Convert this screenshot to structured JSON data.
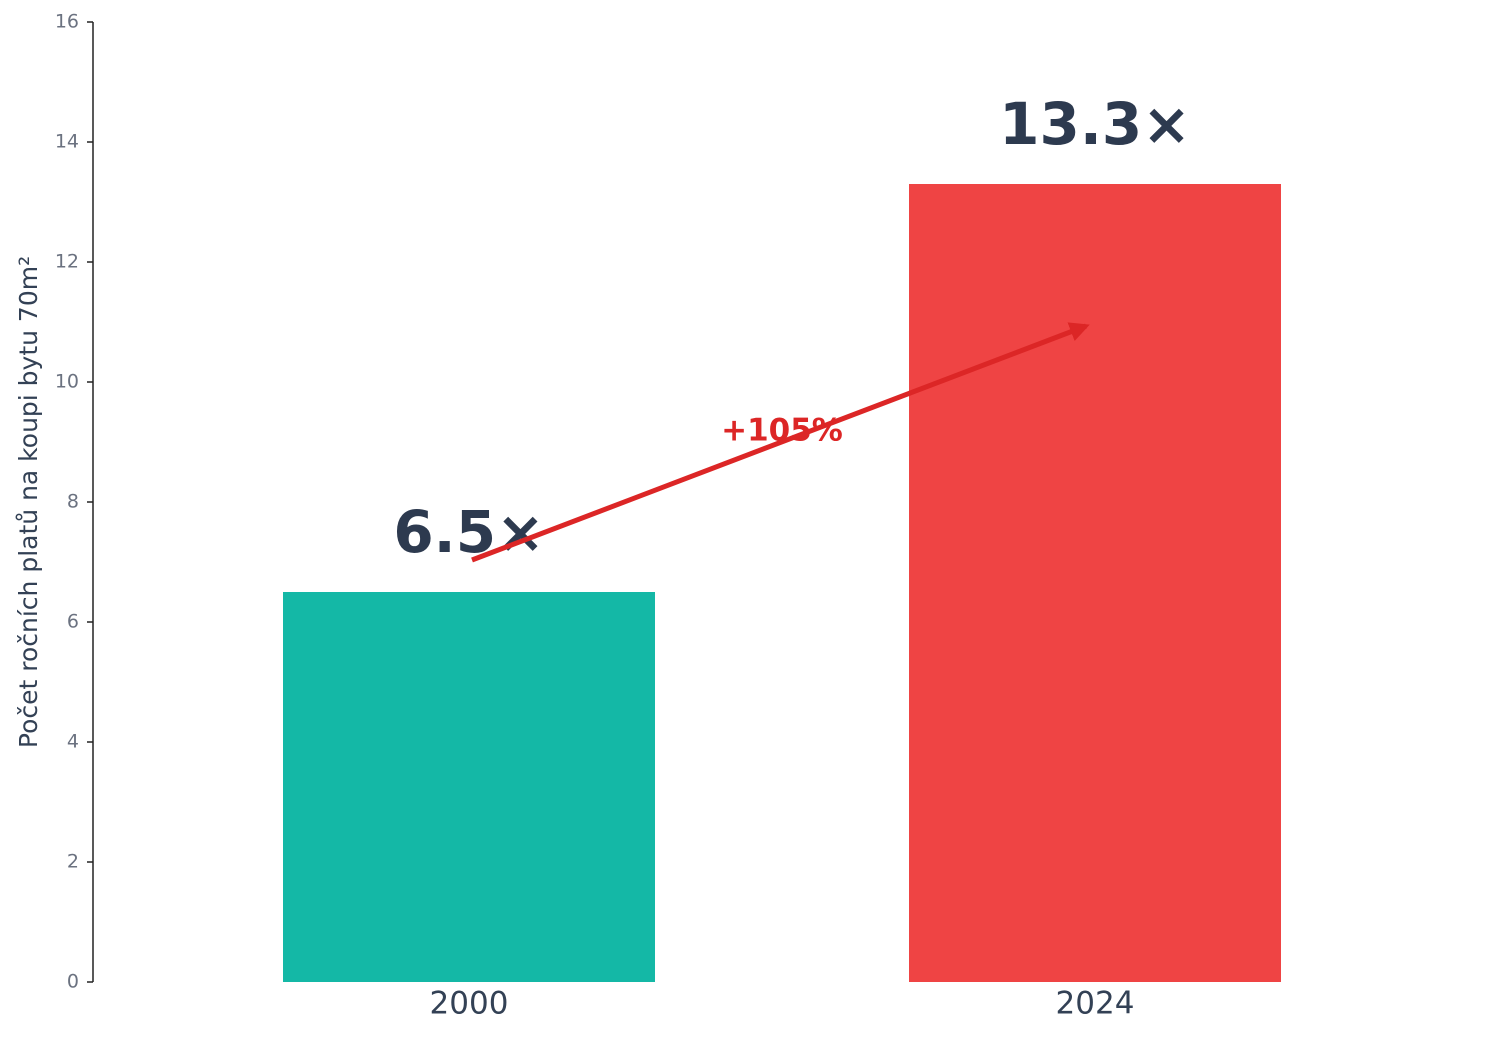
{
  "chart_data": {
    "type": "bar",
    "y_label": "Počet ročních platů na koupi bytu 70m²",
    "categories": [
      "2000",
      "2024"
    ],
    "values": [
      6.5,
      13.3
    ],
    "value_labels": [
      "6.5×",
      "13.3×"
    ],
    "colors": [
      "#14b8a6",
      "#ef4444"
    ],
    "ylim": [
      0,
      16
    ],
    "yticks": [
      0,
      2,
      4,
      6,
      8,
      10,
      12,
      14,
      16
    ],
    "annotation": "+105%"
  }
}
